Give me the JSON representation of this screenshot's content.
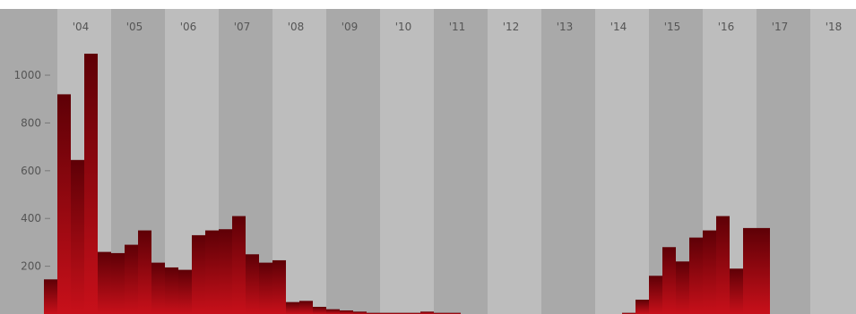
{
  "chart_data": {
    "type": "bar",
    "title": "",
    "xlabel": "",
    "ylabel": "",
    "x_tick_labels": [
      "'04",
      "'05",
      "'06",
      "'07",
      "'08",
      "'09",
      "'10",
      "'11",
      "'12",
      "'13",
      "'14",
      "'15",
      "'16",
      "'17",
      "'18"
    ],
    "y_ticks": [
      200,
      400,
      600,
      800,
      1000
    ],
    "ylim": [
      0,
      1150
    ],
    "x_range": [
      "2003-10",
      "2018-12"
    ],
    "grid": "alternating vertical bands per year",
    "bar_unit": "quarter",
    "bars_start": "2003-Q4",
    "values": [
      145,
      920,
      645,
      1090,
      260,
      255,
      290,
      350,
      215,
      195,
      185,
      330,
      350,
      355,
      410,
      250,
      215,
      225,
      50,
      55,
      30,
      20,
      15,
      10,
      5,
      5,
      5,
      5,
      10,
      5,
      5,
      0,
      0,
      0,
      0,
      0,
      0,
      0,
      0,
      0,
      0,
      0,
      0,
      5,
      60,
      160,
      280,
      220,
      320,
      350,
      410,
      190,
      360,
      360
    ],
    "colors": {
      "bar_top": "#5e0006",
      "bar_bottom": "#c8101a",
      "band_dark": "#a9a9a9",
      "band_light": "#bdbdbd",
      "tick_text": "#555555"
    }
  }
}
